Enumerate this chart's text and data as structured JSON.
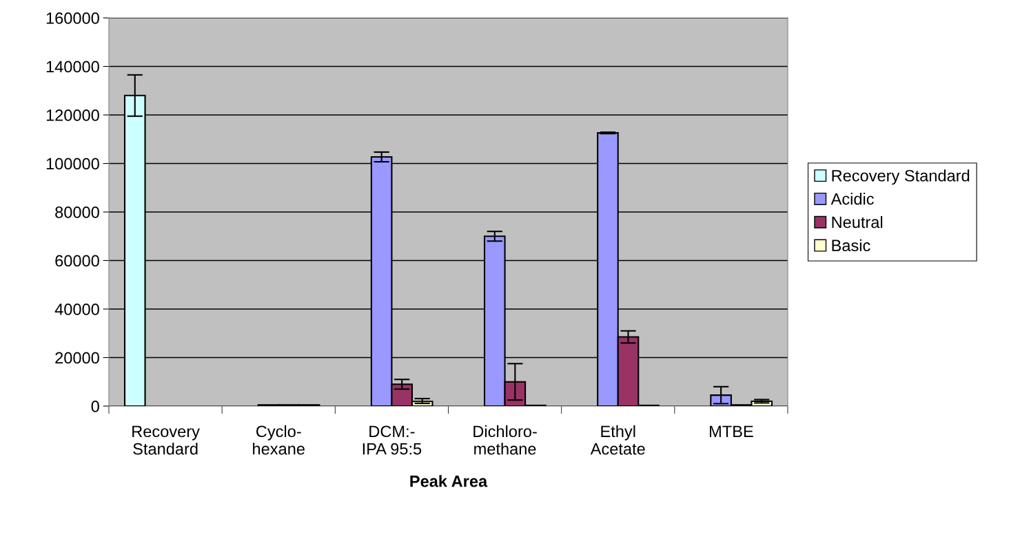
{
  "chart_data": {
    "type": "bar",
    "xlabel": "Peak Area",
    "categories": [
      "Recovery\nStandard",
      "Cyclo-\nhexane",
      "DCM:-\nIPA 95:5",
      "Dichloro-\nmethane",
      "Ethyl\nAcetate",
      "MTBE"
    ],
    "series": [
      {
        "name": "Recovery Standard",
        "color": "#ccffff",
        "values": [
          128000,
          null,
          null,
          null,
          null,
          null
        ],
        "errors": [
          8500,
          null,
          null,
          null,
          null,
          null
        ]
      },
      {
        "name": "Acidic",
        "color": "#9999ff",
        "values": [
          null,
          500,
          102700,
          70000,
          112600,
          4500
        ],
        "errors": [
          null,
          null,
          2000,
          2000,
          300,
          3500
        ]
      },
      {
        "name": "Neutral",
        "color": "#993366",
        "values": [
          null,
          500,
          9000,
          10000,
          28500,
          500
        ],
        "errors": [
          null,
          null,
          2000,
          7500,
          2500,
          null
        ]
      },
      {
        "name": "Basic",
        "color": "#ffffcc",
        "values": [
          null,
          500,
          1900,
          300,
          300,
          2000
        ],
        "errors": [
          null,
          null,
          [
            1100,
            3100
          ],
          null,
          null,
          700
        ]
      }
    ],
    "ylim": [
      0,
      160000
    ],
    "yticks": [
      0,
      20000,
      40000,
      60000,
      80000,
      100000,
      120000,
      140000,
      160000
    ],
    "grid": "y",
    "legend": "right"
  }
}
